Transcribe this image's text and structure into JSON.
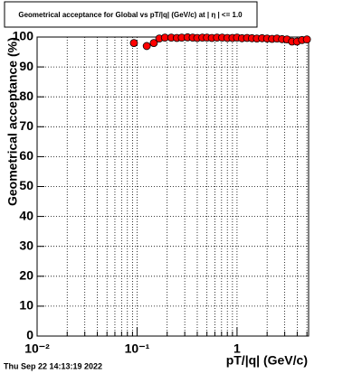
{
  "chart_data": {
    "type": "scatter",
    "title": "Geometrical acceptance for Global vs pT/|q| (GeV/c) at |  η  | <= 1.0",
    "x_label": "pT/|q| (GeV/c)",
    "y_label": "Geometrical acceptance (%)",
    "timestamp": "Thu Sep 22 14:13:19 2022",
    "x_log": true,
    "grid": true,
    "xlim": [
      0.01,
      5.2
    ],
    "ylim": [
      0,
      100
    ],
    "xticks": [
      {
        "value": 0.01,
        "label": "10⁻²"
      },
      {
        "value": 0.1,
        "label": "10⁻¹"
      },
      1
    ],
    "xminorticks": [
      0.02,
      0.03,
      0.04,
      0.05,
      0.06,
      0.07,
      0.08,
      0.09,
      0.2,
      0.3,
      0.4,
      0.5,
      0.6,
      0.7,
      0.8,
      0.9,
      2,
      3,
      4,
      5
    ],
    "yticks": [
      0,
      10,
      20,
      30,
      40,
      50,
      60,
      70,
      80,
      90,
      100
    ],
    "series": [
      {
        "color": "#ff0000",
        "x": [
          0.093,
          0.125,
          0.147,
          0.167,
          0.19,
          0.22,
          0.25,
          0.28,
          0.32,
          0.36,
          0.4,
          0.45,
          0.5,
          0.56,
          0.63,
          0.71,
          0.8,
          0.9,
          1.0,
          1.12,
          1.26,
          1.41,
          1.58,
          1.78,
          2.0,
          2.24,
          2.51,
          2.82,
          3.16,
          3.55,
          3.98,
          4.47,
          5.0
        ],
        "values": [
          98,
          97,
          98,
          99.5,
          99.8,
          99.8,
          99.7,
          99.8,
          99.9,
          99.8,
          99.7,
          99.8,
          99.8,
          99.7,
          99.8,
          99.8,
          99.7,
          99.7,
          99.8,
          99.6,
          99.7,
          99.6,
          99.5,
          99.6,
          99.5,
          99.4,
          99.5,
          99.3,
          99.2,
          98.5,
          98.5,
          99,
          99.2
        ]
      }
    ]
  }
}
